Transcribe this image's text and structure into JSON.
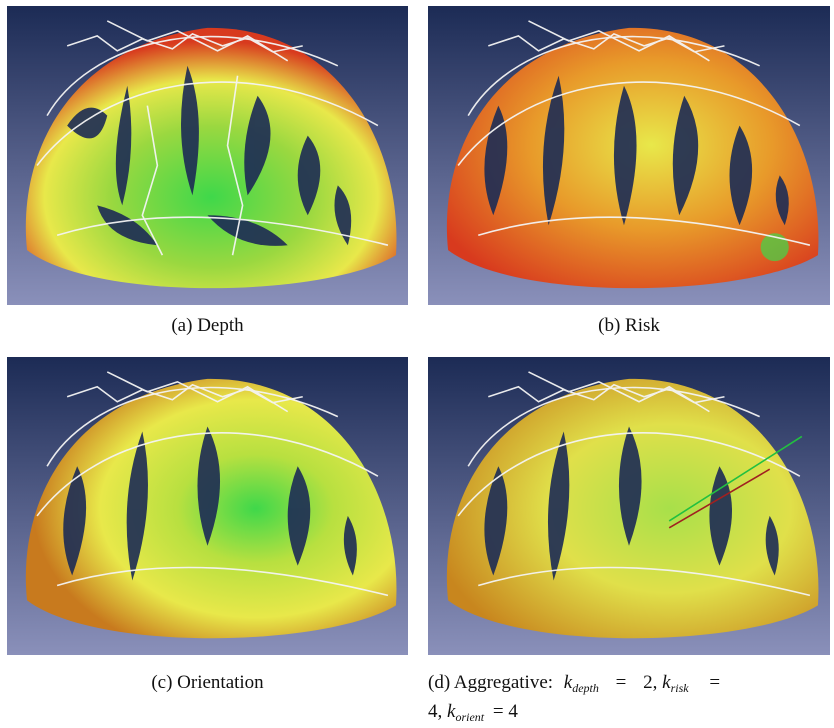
{
  "figure": {
    "panels": [
      {
        "id": "a",
        "caption": "(a)  Depth",
        "scheme": "depth"
      },
      {
        "id": "b",
        "caption": "(b)  Risk",
        "scheme": "risk"
      },
      {
        "id": "c",
        "caption": "(c)  Orientation",
        "scheme": "orient"
      },
      {
        "id": "d",
        "caption_prefix": "(d)  Aggregative:",
        "scheme": "aggregate"
      }
    ],
    "aggregate_formula": {
      "k": "k",
      "eq": "=",
      "sub_depth": "depth",
      "val_depth": "2,",
      "sub_risk": "risk",
      "line2_val": "4,",
      "sub_orient": "orient",
      "val_orient": "= 4"
    },
    "colors": {
      "bg_top": "#1c2b55",
      "bg_bottom": "#8a90ba",
      "mesh": "#f4f4f4",
      "green": "#3fd84a",
      "yellow": "#e8e84a",
      "red": "#d83a1e",
      "pink": "#e9c2c8"
    }
  }
}
